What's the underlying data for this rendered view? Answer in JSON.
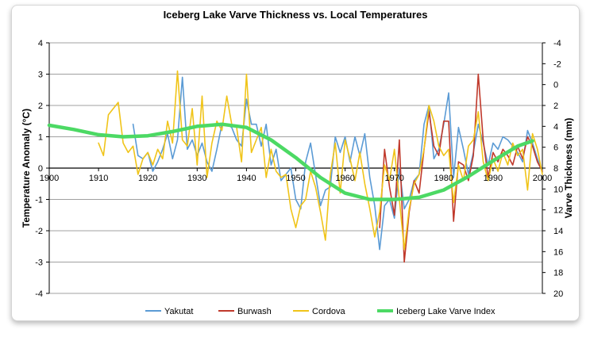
{
  "chart_data": {
    "type": "line",
    "title": "Iceberg Lake Varve Thickness vs. Local Temperatures",
    "xlabel": "",
    "ylabel": "Temperature Anomaly (°C)",
    "y2label": "Varve Thickness (mm)",
    "xlim": [
      1900,
      2000
    ],
    "ylim": [
      -4,
      4
    ],
    "y2lim": [
      20,
      -4
    ],
    "y2_inverted": true,
    "x_ticks": [
      1900,
      1910,
      1920,
      1930,
      1940,
      1950,
      1960,
      1970,
      1980,
      1990,
      2000
    ],
    "y_ticks": [
      -4,
      -3,
      -2,
      -1,
      0,
      1,
      2,
      3,
      4
    ],
    "y2_ticks": [
      -4,
      -2,
      0,
      2,
      4,
      6,
      8,
      10,
      12,
      14,
      16,
      18,
      20
    ],
    "grid": "horizontal",
    "legend_position": "bottom",
    "series": [
      {
        "name": "Yakutat",
        "axis": "left",
        "color": "#5b9bd5",
        "x": [
          1917,
          1918,
          1919,
          1920,
          1921,
          1922,
          1923,
          1924,
          1925,
          1926,
          1927,
          1928,
          1929,
          1930,
          1931,
          1932,
          1933,
          1934,
          1935,
          1936,
          1937,
          1938,
          1939,
          1940,
          1941,
          1942,
          1943,
          1944,
          1945,
          1946,
          1947,
          1948,
          1949,
          1950,
          1951,
          1952,
          1953,
          1954,
          1955,
          1956,
          1957,
          1958,
          1959,
          1960,
          1961,
          1962,
          1963,
          1964,
          1965,
          1966,
          1967,
          1968,
          1969,
          1970,
          1971,
          1972,
          1973,
          1974,
          1975,
          1976,
          1977,
          1978,
          1979,
          1980,
          1981,
          1982,
          1983,
          1984,
          1985,
          1986,
          1987,
          1988,
          1989,
          1990,
          1991,
          1992,
          1993,
          1994,
          1995,
          1996,
          1997,
          1998,
          1999,
          2000
        ],
        "y": [
          1.4,
          0.4,
          0.3,
          0.5,
          -0.1,
          0.2,
          0.6,
          1.1,
          0.3,
          0.9,
          2.9,
          0.6,
          0.9,
          0.4,
          0.8,
          0.2,
          -0.1,
          0.6,
          1.4,
          1.4,
          1.3,
          0.9,
          0.7,
          2.2,
          1.4,
          1.4,
          0.7,
          1.4,
          0.1,
          0.6,
          -0.4,
          -0.2,
          0.0,
          -1.0,
          -1.3,
          0.2,
          0.8,
          -0.2,
          -1.2,
          -0.7,
          -0.6,
          1.0,
          0.5,
          1.0,
          0.2,
          1.0,
          0.4,
          1.1,
          -0.3,
          -1.2,
          -2.6,
          -1.2,
          -1.0,
          -1.6,
          0.0,
          -1.3,
          -1.0,
          -0.4,
          -0.2,
          1.4,
          2.0,
          0.3,
          0.6,
          1.4,
          2.4,
          -0.3,
          1.3,
          0.6,
          -0.2,
          0.5,
          1.4,
          0.8,
          0.1,
          0.8,
          0.6,
          1.0,
          0.9,
          0.7,
          0.5,
          0.2,
          1.2,
          0.8,
          0.3,
          -0.1
        ]
      },
      {
        "name": "Burwash",
        "axis": "left",
        "color": "#c0392b",
        "x": [
          1967,
          1968,
          1969,
          1970,
          1971,
          1972,
          1973,
          1974,
          1975,
          1976,
          1977,
          1978,
          1979,
          1980,
          1981,
          1982,
          1983,
          1984,
          1985,
          1986,
          1987,
          1988,
          1989,
          1990,
          1991,
          1992,
          1993,
          1994,
          1995,
          1996,
          1997,
          1998,
          1999,
          2000
        ],
        "y": [
          -1.9,
          0.6,
          -0.6,
          -1.5,
          0.9,
          -3.0,
          -1.4,
          -0.4,
          -0.8,
          0.6,
          1.8,
          0.7,
          0.4,
          1.5,
          1.5,
          -1.7,
          0.2,
          0.1,
          -0.4,
          0.4,
          3.0,
          0.9,
          -0.3,
          0.5,
          0.2,
          0.6,
          0.4,
          0.1,
          0.7,
          0.3,
          1.0,
          0.7,
          0.2,
          -0.1
        ]
      },
      {
        "name": "Cordova",
        "axis": "left",
        "color": "#f0c419",
        "x": [
          1910,
          1911,
          1912,
          1913,
          1914,
          1915,
          1916,
          1917,
          1918,
          1919,
          1920,
          1921,
          1922,
          1923,
          1924,
          1925,
          1926,
          1927,
          1928,
          1929,
          1930,
          1931,
          1932,
          1933,
          1934,
          1935,
          1936,
          1937,
          1938,
          1939,
          1940,
          1941,
          1942,
          1943,
          1944,
          1945,
          1946,
          1947,
          1948,
          1949,
          1950,
          1951,
          1952,
          1953,
          1954,
          1955,
          1956,
          1957,
          1958,
          1959,
          1960,
          1961,
          1962,
          1963,
          1964,
          1965,
          1966,
          1967,
          1968,
          1969,
          1970,
          1971,
          1972,
          1973,
          1974,
          1975,
          1976,
          1977,
          1978,
          1979,
          1980,
          1981,
          1982,
          1983,
          1984,
          1985,
          1986,
          1987,
          1988,
          1989,
          1990,
          1991,
          1992,
          1993,
          1994,
          1995,
          1996,
          1997,
          1998,
          1999,
          2000
        ],
        "y": [
          0.8,
          0.4,
          1.7,
          1.9,
          2.1,
          0.8,
          0.5,
          0.7,
          -0.2,
          0.3,
          0.5,
          0.1,
          0.6,
          0.3,
          1.5,
          0.8,
          3.1,
          0.9,
          0.7,
          1.9,
          0.1,
          2.3,
          -0.3,
          0.8,
          1.5,
          1.2,
          2.3,
          1.4,
          1.3,
          0.2,
          3.0,
          0.5,
          0.9,
          1.3,
          -0.3,
          0.6,
          -0.1,
          -0.3,
          -0.2,
          -1.3,
          -1.9,
          -1.2,
          -1.0,
          -0.1,
          -0.6,
          -1.4,
          -2.3,
          -0.2,
          0.8,
          -0.8,
          0.9,
          0.3,
          -0.4,
          0.5,
          -0.5,
          -1.3,
          -2.2,
          -1.4,
          0.1,
          -0.4,
          0.6,
          -1.0,
          -2.6,
          -1.3,
          -0.5,
          -0.2,
          0.6,
          2.0,
          1.5,
          0.7,
          0.4,
          0.6,
          -1.1,
          0.1,
          -0.4,
          0.7,
          0.9,
          1.8,
          0.2,
          -0.4,
          0.3,
          -0.1,
          0.5,
          0.1,
          0.8,
          0.4,
          0.6,
          -0.7,
          1.1,
          0.6,
          -0.2
        ]
      },
      {
        "name": "Iceberg Lake Varve Index",
        "axis": "right",
        "color": "#4cd964",
        "x": [
          1900,
          1905,
          1910,
          1915,
          1920,
          1925,
          1930,
          1935,
          1940,
          1945,
          1950,
          1955,
          1960,
          1965,
          1970,
          1975,
          1980,
          1985,
          1990,
          1995,
          1998
        ],
        "y": [
          3.9,
          4.3,
          4.8,
          5.0,
          4.9,
          4.5,
          4.0,
          3.8,
          4.1,
          5.3,
          7.0,
          8.9,
          10.4,
          11.0,
          11.0,
          10.8,
          10.1,
          8.8,
          7.3,
          5.9,
          5.4
        ]
      }
    ]
  }
}
